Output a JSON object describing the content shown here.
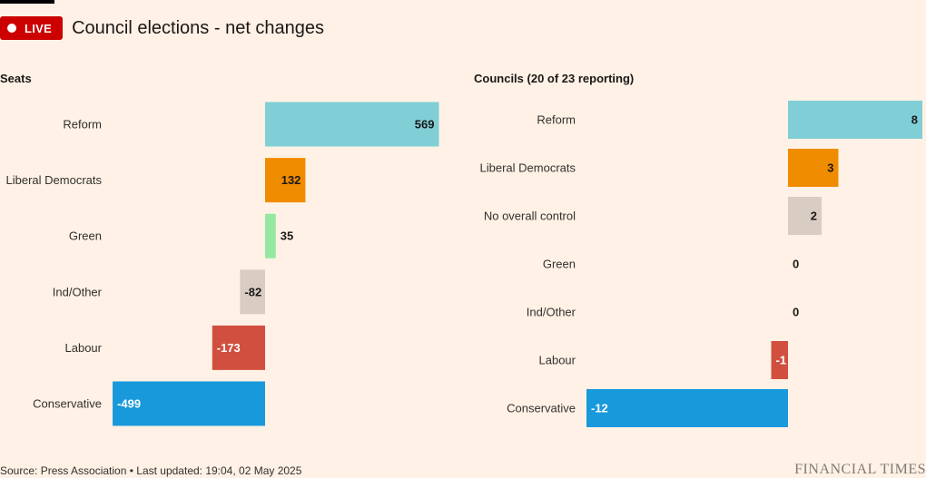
{
  "header": {
    "live_label": "LIVE",
    "title": "Council elections - net changes"
  },
  "chart_data": [
    {
      "type": "bar",
      "orientation": "horizontal",
      "title": "Seats",
      "categories": [
        "Reform",
        "Liberal Democrats",
        "Green",
        "Ind/Other",
        "Labour",
        "Conservative"
      ],
      "values": [
        569,
        132,
        35,
        -82,
        -173,
        -499
      ],
      "labels": [
        "569",
        "132",
        "35",
        "-82",
        "-173",
        "-499"
      ],
      "colors": [
        "#80ced6",
        "#f08c00",
        "#96e8a0",
        "#d9ccc3",
        "#d14f3f",
        "#1899db"
      ],
      "label_colors": [
        "#1a1817",
        "#1a1817",
        "#33302e",
        "#1a1817",
        "#ffffff",
        "#ffffff"
      ],
      "xlim": [
        -569,
        569
      ],
      "grid": false,
      "legend": "none"
    },
    {
      "type": "bar",
      "orientation": "horizontal",
      "title": "Councils (20 of 23 reporting)",
      "categories": [
        "Reform",
        "Liberal Democrats",
        "No overall control",
        "Green",
        "Ind/Other",
        "Labour",
        "Conservative"
      ],
      "values": [
        8,
        3,
        2,
        0,
        0,
        -1,
        -12
      ],
      "labels": [
        "8",
        "3",
        "2",
        "0",
        "0",
        "-1",
        "-12"
      ],
      "colors": [
        "#80ced6",
        "#f08c00",
        "#d9ccc3",
        "#96e8a0",
        "#d9ccc3",
        "#d14f3f",
        "#1899db"
      ],
      "label_colors": [
        "#1a1817",
        "#1a1817",
        "#1a1817",
        "#1a1817",
        "#1a1817",
        "#ffffff",
        "#ffffff"
      ],
      "xlim": [
        -12,
        8
      ],
      "grid": false,
      "legend": "none"
    }
  ],
  "footer": {
    "source": "Source: Press Association • Last updated: 19:04, 02 May 2025",
    "logo": "FINANCIAL TIMES"
  }
}
